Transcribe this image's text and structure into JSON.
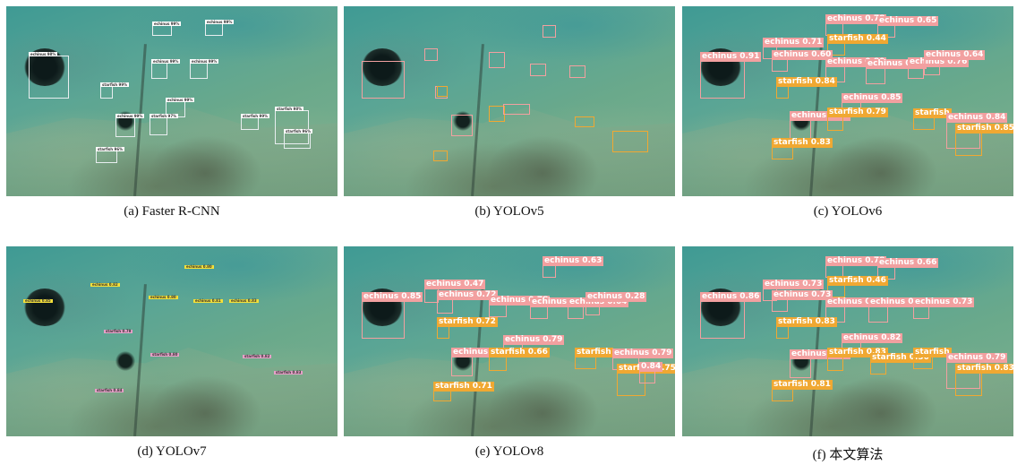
{
  "panels": [
    {
      "caption": "(a) Faster R-CNN",
      "boxes": [
        {
          "k": "w",
          "label": "echinus 99%"
        },
        {
          "k": "w",
          "label": "echinus 99%"
        },
        {
          "k": "w",
          "label": "echinus 98%"
        },
        {
          "k": "w",
          "label": "starfish 99%"
        },
        {
          "k": "w",
          "label": "echinus 99%"
        },
        {
          "k": "w",
          "label": "echinus 99%"
        },
        {
          "k": "w",
          "label": "echinus 99%"
        },
        {
          "k": "w",
          "label": "starfish 99%"
        },
        {
          "k": "w",
          "label": "echinus 99%"
        },
        {
          "k": "w",
          "label": "starfish 97%"
        },
        {
          "k": "w",
          "label": "starfish 98%"
        },
        {
          "k": "w",
          "label": "starfish 96%"
        },
        {
          "k": "w",
          "label": "starfish 96%"
        }
      ]
    },
    {
      "caption": "(b) YOLOv5",
      "boxes": [
        {
          "k": "e",
          "label": ""
        },
        {
          "k": "e",
          "label": ""
        },
        {
          "k": "e",
          "label": ""
        },
        {
          "k": "e",
          "label": ""
        },
        {
          "k": "e",
          "label": ""
        },
        {
          "k": "e",
          "label": ""
        },
        {
          "k": "e",
          "label": ""
        },
        {
          "k": "s",
          "label": ""
        },
        {
          "k": "e",
          "label": ""
        },
        {
          "k": "s",
          "label": ""
        },
        {
          "k": "s",
          "label": ""
        },
        {
          "k": "e",
          "label": ""
        },
        {
          "k": "s",
          "label": ""
        },
        {
          "k": "s",
          "label": ""
        }
      ]
    },
    {
      "caption": "(c) YOLOv6",
      "boxes": [
        {
          "k": "e",
          "label": "echinus 0.78"
        },
        {
          "k": "e",
          "label": "echinus 0.65"
        },
        {
          "k": "s",
          "label": "starfish 0.44"
        },
        {
          "k": "e",
          "label": "echinus 0.71"
        },
        {
          "k": "e",
          "label": "echinus 0.60"
        },
        {
          "k": "e",
          "label": "echinus 0.80"
        },
        {
          "k": "e",
          "label": "echinus 0.82"
        },
        {
          "k": "e",
          "label": "echinus 0.76"
        },
        {
          "k": "e",
          "label": "echinus 0.64"
        },
        {
          "k": "e",
          "label": "echinus 0.91"
        },
        {
          "k": "s",
          "label": "starfish 0.84"
        },
        {
          "k": "e",
          "label": "echinus 0.85"
        },
        {
          "k": "e",
          "label": "echinus 0.84"
        },
        {
          "k": "s",
          "label": "starfish 0.79"
        },
        {
          "k": "s",
          "label": "starfish"
        },
        {
          "k": "e",
          "label": "echinus 0.84"
        },
        {
          "k": "s",
          "label": "starfish 0.85"
        },
        {
          "k": "s",
          "label": "starfish 0.83"
        }
      ]
    },
    {
      "caption": "(d) YOLOv7",
      "boxes": [
        {
          "k": "y",
          "label": "echinus 0.80"
        },
        {
          "k": "y",
          "label": "echinus 0.82"
        },
        {
          "k": "y",
          "label": "echinus 0.85"
        },
        {
          "k": "y",
          "label": "echinus 0.80"
        },
        {
          "k": "y",
          "label": "echinus 0.81"
        },
        {
          "k": "y",
          "label": "echinus 0.83"
        },
        {
          "k": "ym",
          "label": "starfish 0.79"
        },
        {
          "k": "ym",
          "label": "starfish 0.80"
        },
        {
          "k": "ym",
          "label": "starfish 0.82"
        },
        {
          "k": "ym",
          "label": "starfish 0.83"
        },
        {
          "k": "ym",
          "label": "starfish 0.84"
        }
      ]
    },
    {
      "caption": "(e) YOLOv8",
      "boxes": [
        {
          "k": "e",
          "label": "echinus 0.63"
        },
        {
          "k": "e",
          "label": "echinus 0.47"
        },
        {
          "k": "e",
          "label": "echinus 0.72"
        },
        {
          "k": "e",
          "label": "echinus 0.78"
        },
        {
          "k": "e",
          "label": "echinus 0.70"
        },
        {
          "k": "e",
          "label": "echinus 0.64"
        },
        {
          "k": "e",
          "label": "echinus 0.28"
        },
        {
          "k": "e",
          "label": "echinus 0.85"
        },
        {
          "k": "s",
          "label": "starfish 0.72"
        },
        {
          "k": "e",
          "label": "echinus 0.79"
        },
        {
          "k": "e",
          "label": "echinus 0.82"
        },
        {
          "k": "s",
          "label": "starfish 0.66"
        },
        {
          "k": "s",
          "label": "starfish"
        },
        {
          "k": "e",
          "label": "echinus 0.79"
        },
        {
          "k": "s",
          "label": "starfish 0.75"
        },
        {
          "k": "e",
          "label": "0.84"
        },
        {
          "k": "s",
          "label": "starfish 0.71"
        }
      ]
    },
    {
      "caption": "(f) 本文算法",
      "boxes": [
        {
          "k": "e",
          "label": "echinus 0.78"
        },
        {
          "k": "e",
          "label": "echinus 0.66"
        },
        {
          "k": "s",
          "label": "starfish 0.46"
        },
        {
          "k": "e",
          "label": "echinus 0.73"
        },
        {
          "k": "e",
          "label": "echinus 0.73"
        },
        {
          "k": "e",
          "label": "echinus 0.81"
        },
        {
          "k": "e",
          "label": "echinus 0.79"
        },
        {
          "k": "e",
          "label": "echinus 0.73"
        },
        {
          "k": "e",
          "label": "echinus 0.86"
        },
        {
          "k": "s",
          "label": "starfish 0.83"
        },
        {
          "k": "e",
          "label": "echinus 0.82"
        },
        {
          "k": "e",
          "label": "echinus 0.85"
        },
        {
          "k": "s",
          "label": "starfish 0.83"
        },
        {
          "k": "s",
          "label": "starfish 0.30"
        },
        {
          "k": "s",
          "label": "starfish"
        },
        {
          "k": "e",
          "label": "echinus 0.79"
        },
        {
          "k": "s",
          "label": "starfish 0.83"
        },
        {
          "k": "s",
          "label": "starfish 0.81"
        }
      ]
    }
  ]
}
